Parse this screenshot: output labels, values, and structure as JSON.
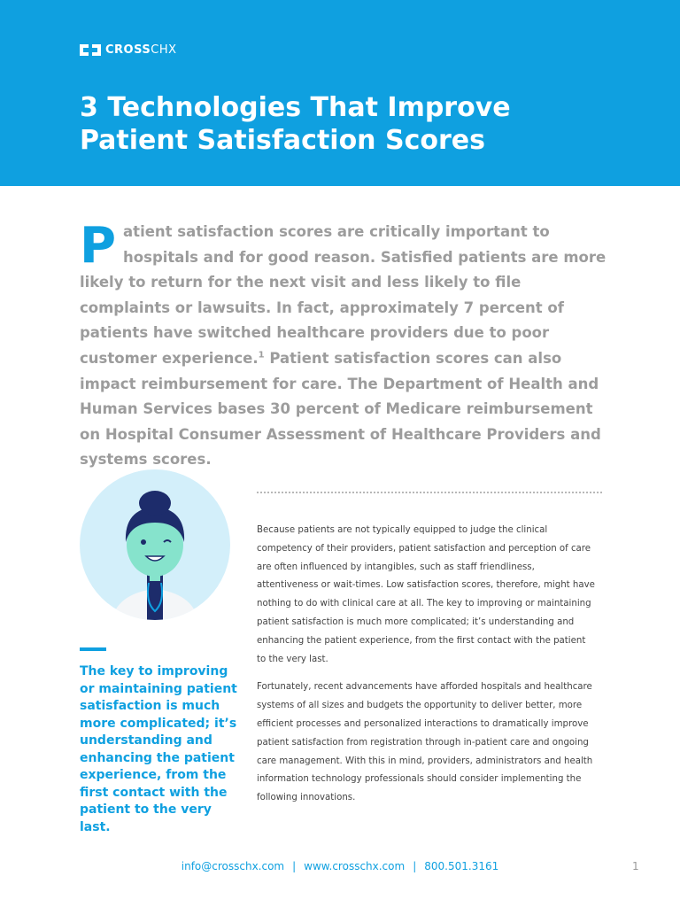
{
  "header": {
    "logo_bold": "CROSS",
    "logo_light": "CHX",
    "title_lines": [
      "3 Technologies That Improve",
      "Patient Satisfaction Scores"
    ]
  },
  "intro": {
    "drop_cap": "P",
    "text_before_note": "atient satisfaction scores are critically important to hospitals and for good reason. Satisfied patients are more likely to return for the next visit and less likely to file complaints or lawsuits. In fact, approximately 7 percent of patients have switched healthcare providers due to poor customer experience.",
    "note": "1",
    "text_after_note": "Patient satisfaction scores can also impact reimbursement for care. The Department of Health and Human Services bases 30 percent of Medicare reimbursement on Hospital Consumer Assessment of Healthcare Providers and systems scores."
  },
  "pull_quote": "The key to improving or maintaining patient satisfaction is much more complicated; it’s understanding and enhancing the patient experience, from the first contact with the patient to the very last.",
  "body": {
    "paragraphs": [
      "Because patients are not typically equipped to judge the clinical competency of their providers, patient satisfaction and perception of care are often influenced by intangibles, such as staff friendliness, attentiveness or wait-times. Low satisfaction scores, therefore, might have nothing to do with clinical care at all. The key to improving or maintaining patient satisfaction is much more complicated; it’s understanding and enhancing the patient experience, from the first contact with the patient to the very last.",
      "Fortunately, recent advancements have afforded hospitals and healthcare systems of all sizes and budgets the opportunity to deliver better, more efficient processes and personalized interactions to dramatically improve patient satisfaction from registration through in-patient care and ongoing care management. With this in mind, providers, administrators and health information technology professionals should consider implementing the following innovations."
    ]
  },
  "footer": {
    "email": "info@crosschx.com",
    "separator": "|",
    "website": "www.crosschx.com",
    "phone": "800.501.3161",
    "page": "1"
  }
}
